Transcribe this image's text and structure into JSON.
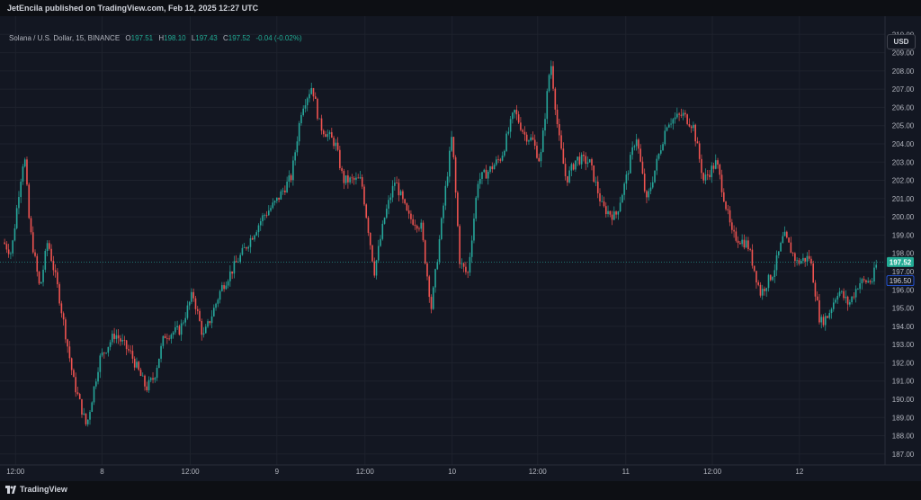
{
  "header": {
    "published_line": "JetEncila published on TradingView.com, Feb 12, 2025 12:27 UTC"
  },
  "legend": {
    "symbol": "Solana / U.S. Dollar, 15, BINANCE",
    "o_label": "O",
    "o_value": "197.51",
    "h_label": "H",
    "h_value": "198.10",
    "l_label": "L",
    "l_value": "197.43",
    "c_label": "C",
    "c_value": "197.52",
    "change": "-0.04 (-0.02%)"
  },
  "currency_button": "USD",
  "footer": {
    "brand": "TradingView"
  },
  "colors": {
    "up": "#26a69a",
    "down": "#ef5350",
    "background": "#131722",
    "grid": "#1e222d",
    "text": "#b2b5be"
  },
  "chart_data": {
    "type": "candlestick",
    "timeframe": "15",
    "exchange": "BINANCE",
    "symbol": "Solana / U.S. Dollar",
    "ylim": [
      186.4,
      211.0
    ],
    "y_ticks": [
      "187.00",
      "188.00",
      "189.00",
      "190.00",
      "191.00",
      "192.00",
      "193.00",
      "194.00",
      "195.00",
      "196.00",
      "197.00",
      "198.00",
      "199.00",
      "200.00",
      "201.00",
      "202.00",
      "203.00",
      "204.00",
      "205.00",
      "206.00",
      "207.00",
      "208.00",
      "209.00",
      "210.00"
    ],
    "x_ticks": [
      "12:00",
      "8",
      "12:00",
      "9",
      "12:00",
      "10",
      "12:00",
      "11",
      "12:00",
      "12"
    ],
    "last_price": "197.52",
    "secondary_price": "196.50",
    "price_path": [
      {
        "x": 0.0,
        "y": 198.6
      },
      {
        "x": 0.15,
        "y": 198.0
      },
      {
        "x": 0.3,
        "y": 201.5
      },
      {
        "x": 0.4,
        "y": 203.5
      },
      {
        "x": 0.5,
        "y": 199.5
      },
      {
        "x": 0.7,
        "y": 196.0
      },
      {
        "x": 0.85,
        "y": 198.7
      },
      {
        "x": 1.05,
        "y": 196.0
      },
      {
        "x": 1.35,
        "y": 191.0
      },
      {
        "x": 1.6,
        "y": 188.5
      },
      {
        "x": 1.85,
        "y": 192.2
      },
      {
        "x": 2.15,
        "y": 193.6
      },
      {
        "x": 2.45,
        "y": 192.5
      },
      {
        "x": 2.75,
        "y": 190.6
      },
      {
        "x": 2.9,
        "y": 191.2
      },
      {
        "x": 3.1,
        "y": 193.5
      },
      {
        "x": 3.4,
        "y": 193.8
      },
      {
        "x": 3.65,
        "y": 195.8
      },
      {
        "x": 3.85,
        "y": 193.4
      },
      {
        "x": 4.0,
        "y": 194.5
      },
      {
        "x": 4.2,
        "y": 196.1
      },
      {
        "x": 4.6,
        "y": 198.0
      },
      {
        "x": 5.0,
        "y": 200.0
      },
      {
        "x": 5.25,
        "y": 200.8
      },
      {
        "x": 5.55,
        "y": 202.2
      },
      {
        "x": 5.75,
        "y": 206.0
      },
      {
        "x": 5.95,
        "y": 207.2
      },
      {
        "x": 6.1,
        "y": 205.0
      },
      {
        "x": 6.4,
        "y": 204.0
      },
      {
        "x": 6.55,
        "y": 202.0
      },
      {
        "x": 6.9,
        "y": 202.0
      },
      {
        "x": 7.15,
        "y": 197.0
      },
      {
        "x": 7.35,
        "y": 200.0
      },
      {
        "x": 7.55,
        "y": 202.0
      },
      {
        "x": 7.8,
        "y": 200.0
      },
      {
        "x": 8.05,
        "y": 199.5
      },
      {
        "x": 8.25,
        "y": 195.0
      },
      {
        "x": 8.5,
        "y": 201.0
      },
      {
        "x": 8.65,
        "y": 204.5
      },
      {
        "x": 8.8,
        "y": 197.5
      },
      {
        "x": 8.95,
        "y": 196.8
      },
      {
        "x": 9.15,
        "y": 202.0
      },
      {
        "x": 9.35,
        "y": 202.5
      },
      {
        "x": 9.6,
        "y": 203.3
      },
      {
        "x": 9.85,
        "y": 205.8
      },
      {
        "x": 10.05,
        "y": 204.5
      },
      {
        "x": 10.2,
        "y": 204.2
      },
      {
        "x": 10.35,
        "y": 203.0
      },
      {
        "x": 10.55,
        "y": 208.6
      },
      {
        "x": 10.7,
        "y": 204.5
      },
      {
        "x": 10.85,
        "y": 202.0
      },
      {
        "x": 11.05,
        "y": 203.2
      },
      {
        "x": 11.3,
        "y": 203.0
      },
      {
        "x": 11.55,
        "y": 200.5
      },
      {
        "x": 11.8,
        "y": 200.0
      },
      {
        "x": 12.0,
        "y": 202.0
      },
      {
        "x": 12.2,
        "y": 204.5
      },
      {
        "x": 12.4,
        "y": 200.8
      },
      {
        "x": 12.6,
        "y": 203.0
      },
      {
        "x": 12.8,
        "y": 205.2
      },
      {
        "x": 13.1,
        "y": 205.6
      },
      {
        "x": 13.3,
        "y": 205.0
      },
      {
        "x": 13.5,
        "y": 202.0
      },
      {
        "x": 13.75,
        "y": 203.0
      },
      {
        "x": 14.05,
        "y": 199.0
      },
      {
        "x": 14.35,
        "y": 198.5
      },
      {
        "x": 14.6,
        "y": 195.8
      },
      {
        "x": 14.85,
        "y": 197.0
      },
      {
        "x": 15.05,
        "y": 199.0
      },
      {
        "x": 15.3,
        "y": 197.5
      },
      {
        "x": 15.55,
        "y": 197.8
      },
      {
        "x": 15.75,
        "y": 194.2
      },
      {
        "x": 15.9,
        "y": 194.6
      },
      {
        "x": 16.1,
        "y": 196.0
      },
      {
        "x": 16.3,
        "y": 195.2
      },
      {
        "x": 16.5,
        "y": 196.4
      },
      {
        "x": 16.75,
        "y": 196.5
      },
      {
        "x": 16.85,
        "y": 197.52
      }
    ],
    "x_domain": [
      0,
      17.0
    ],
    "x_tick_positions": [
      0.23,
      1.9,
      3.6,
      5.27,
      6.97,
      8.65,
      10.3,
      12.0,
      13.67,
      15.35
    ]
  }
}
